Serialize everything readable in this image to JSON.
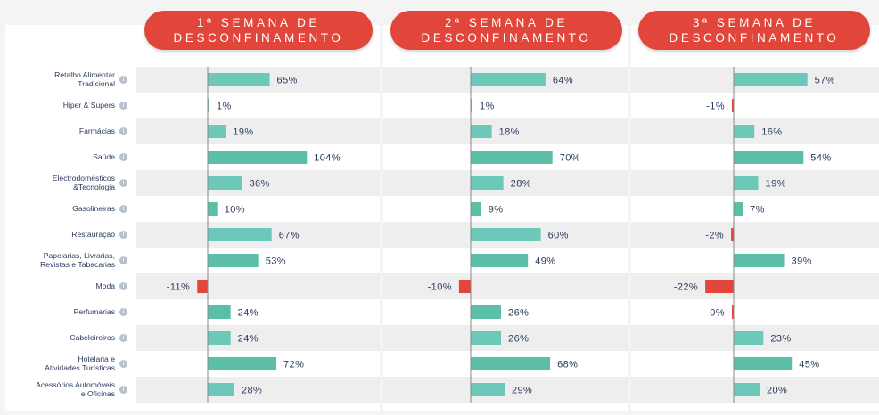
{
  "weeks": [
    {
      "title": "1ª SEMANA DE\nDESCONFINAMENTO"
    },
    {
      "title": "2ª SEMANA DE\nDESCONFINAMENTO"
    },
    {
      "title": "3ª SEMANA DE\nDESCONFINAMENTO"
    }
  ],
  "categories": [
    "Retalho Alimentar\nTradicional",
    "Hiper & Supers",
    "Farmácias",
    "Saúde",
    "Electrodomésticos\n&Tecnologia",
    "Gasolineiras",
    "Restauração",
    "Papelarias, Livrarias,\nRevistas e Tabacarias",
    "Moda",
    "Perfumarias",
    "Cabeleireiros",
    "Hotelaria e\nAtividades Turísticas",
    "Acessórios Automóveis\ne Oficinas"
  ],
  "info_icon": "info-icon",
  "colors": {
    "positive": "#5bbfa8",
    "positive_alt": "#6cc9b9",
    "negative": "#e2463b",
    "pill": "#e2463b",
    "row_alt": "#eeeeee",
    "axis": "#888888",
    "value_text": "#2a3a5c"
  },
  "chart_data": [
    {
      "type": "bar",
      "orientation": "horizontal",
      "title": "1ª SEMANA DE DESCONFINAMENTO",
      "categories": [
        "Retalho Alimentar Tradicional",
        "Hiper & Supers",
        "Farmácias",
        "Saúde",
        "Electrodomésticos &Tecnologia",
        "Gasolineiras",
        "Restauração",
        "Papelarias, Livrarias, Revistas e Tabacarias",
        "Moda",
        "Perfumarias",
        "Cabeleireiros",
        "Hotelaria e Atividades Turísticas",
        "Acessórios Automóveis e Oficinas"
      ],
      "values": [
        65,
        1,
        19,
        104,
        36,
        10,
        67,
        53,
        -11,
        24,
        24,
        72,
        28
      ],
      "labels": [
        "65%",
        "1%",
        "19%",
        "104%",
        "36%",
        "10%",
        "67%",
        "53%",
        "-11%",
        "24%",
        "24%",
        "72%",
        "28%"
      ],
      "unit": "%"
    },
    {
      "type": "bar",
      "orientation": "horizontal",
      "title": "2ª SEMANA DE DESCONFINAMENTO",
      "categories": [
        "Retalho Alimentar Tradicional",
        "Hiper & Supers",
        "Farmácias",
        "Saúde",
        "Electrodomésticos &Tecnologia",
        "Gasolineiras",
        "Restauração",
        "Papelarias, Livrarias, Revistas e Tabacarias",
        "Moda",
        "Perfumarias",
        "Cabeleireiros",
        "Hotelaria e Atividades Turísticas",
        "Acessórios Automóveis e Oficinas"
      ],
      "values": [
        64,
        1,
        18,
        70,
        28,
        9,
        60,
        49,
        -10,
        26,
        26,
        68,
        29
      ],
      "labels": [
        "64%",
        "1%",
        "18%",
        "70%",
        "28%",
        "9%",
        "60%",
        "49%",
        "-10%",
        "26%",
        "26%",
        "68%",
        "29%"
      ],
      "unit": "%"
    },
    {
      "type": "bar",
      "orientation": "horizontal",
      "title": "3ª SEMANA DE DESCONFINAMENTO",
      "categories": [
        "Retalho Alimentar Tradicional",
        "Hiper & Supers",
        "Farmácias",
        "Saúde",
        "Electrodomésticos &Tecnologia",
        "Gasolineiras",
        "Restauração",
        "Papelarias, Livrarias, Revistas e Tabacarias",
        "Moda",
        "Perfumarias",
        "Cabeleireiros",
        "Hotelaria e Atividades Turísticas",
        "Acessórios Automóveis e Oficinas"
      ],
      "values": [
        57,
        -1,
        16,
        54,
        19,
        7,
        -2,
        39,
        -22,
        0,
        23,
        45,
        20
      ],
      "labels": [
        "57%",
        "-1%",
        "16%",
        "54%",
        "19%",
        "7%",
        "-2%",
        "39%",
        "-22%",
        "-0%",
        "23%",
        "45%",
        "20%"
      ],
      "unit": "%"
    }
  ]
}
